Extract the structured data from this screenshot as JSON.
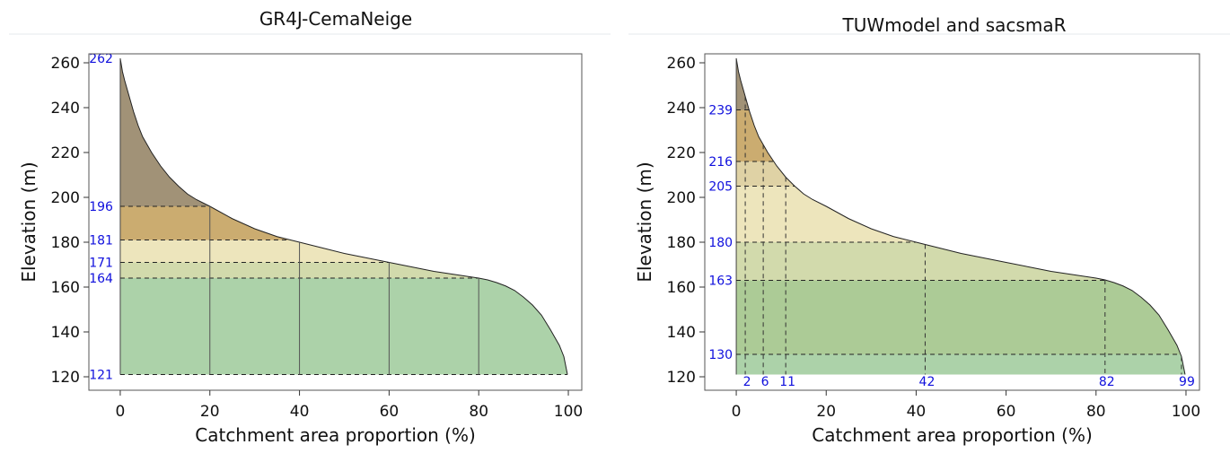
{
  "chart_data": [
    {
      "type": "area",
      "title": "GR4J-CemaNeige",
      "xlabel": "Catchment area proportion (%)",
      "ylabel": "Elevation (m)",
      "xlim": [
        -7,
        103
      ],
      "ylim": [
        114,
        264
      ],
      "x_ticks": [
        0,
        20,
        40,
        60,
        80,
        100
      ],
      "y_ticks": [
        120,
        140,
        160,
        180,
        200,
        220,
        240,
        260
      ],
      "grid": false,
      "hypsometric_curve": [
        [
          0,
          262
        ],
        [
          0.5,
          256
        ],
        [
          1,
          252
        ],
        [
          2,
          245
        ],
        [
          3,
          238
        ],
        [
          4,
          232
        ],
        [
          5,
          227
        ],
        [
          7,
          220
        ],
        [
          9,
          214
        ],
        [
          11,
          209
        ],
        [
          13,
          205
        ],
        [
          15,
          201.5
        ],
        [
          17,
          199
        ],
        [
          20,
          196
        ],
        [
          25,
          190.5
        ],
        [
          30,
          186
        ],
        [
          35,
          182.5
        ],
        [
          40,
          180
        ],
        [
          45,
          177.5
        ],
        [
          50,
          175
        ],
        [
          55,
          173
        ],
        [
          60,
          171
        ],
        [
          65,
          169
        ],
        [
          70,
          167
        ],
        [
          75,
          165.5
        ],
        [
          80,
          164
        ],
        [
          82,
          163.2
        ],
        [
          84,
          162
        ],
        [
          86,
          160.5
        ],
        [
          88,
          158.5
        ],
        [
          90,
          155.5
        ],
        [
          92,
          152
        ],
        [
          94,
          147.5
        ],
        [
          96,
          141
        ],
        [
          98,
          134
        ],
        [
          99,
          129
        ],
        [
          99.8,
          121
        ]
      ],
      "elevation_bands": [
        {
          "lower": 196,
          "upper": 262,
          "color": "#9c8c70"
        },
        {
          "lower": 181,
          "upper": 196,
          "color": "#c8a868"
        },
        {
          "lower": 171,
          "upper": 181,
          "color": "#ece4b8"
        },
        {
          "lower": 164,
          "upper": 171,
          "color": "#d0d8a8"
        },
        {
          "lower": 121,
          "upper": 164,
          "color": "#a8d0a4"
        }
      ],
      "band_labels": [
        "262",
        "196",
        "181",
        "171",
        "164",
        "121"
      ],
      "band_label_values": [
        262,
        196,
        181,
        171,
        164,
        121
      ],
      "vertical_lines": [
        20,
        40,
        60,
        80
      ],
      "bottom_labels": [],
      "bottom_label_values": []
    },
    {
      "type": "area",
      "title": "TUWmodel and sacsmaR",
      "xlabel": "Catchment area proportion (%)",
      "ylabel": "Elevation (m)",
      "xlim": [
        -7,
        103
      ],
      "ylim": [
        114,
        264
      ],
      "x_ticks": [
        0,
        20,
        40,
        60,
        80,
        100
      ],
      "y_ticks": [
        120,
        140,
        160,
        180,
        200,
        220,
        240,
        260
      ],
      "grid": false,
      "hypsometric_curve": [
        [
          0,
          262
        ],
        [
          0.5,
          256
        ],
        [
          1,
          252
        ],
        [
          2,
          245
        ],
        [
          3,
          238
        ],
        [
          4,
          232
        ],
        [
          5,
          227
        ],
        [
          7,
          220
        ],
        [
          9,
          214
        ],
        [
          11,
          209
        ],
        [
          13,
          205
        ],
        [
          15,
          201.5
        ],
        [
          17,
          199
        ],
        [
          20,
          196
        ],
        [
          25,
          190.5
        ],
        [
          30,
          186
        ],
        [
          35,
          182.5
        ],
        [
          40,
          180
        ],
        [
          45,
          177.5
        ],
        [
          50,
          175
        ],
        [
          55,
          173
        ],
        [
          60,
          171
        ],
        [
          65,
          169
        ],
        [
          70,
          167
        ],
        [
          75,
          165.5
        ],
        [
          80,
          164
        ],
        [
          82,
          163.2
        ],
        [
          84,
          162
        ],
        [
          86,
          160.5
        ],
        [
          88,
          158.5
        ],
        [
          90,
          155.5
        ],
        [
          92,
          152
        ],
        [
          94,
          147.5
        ],
        [
          96,
          141
        ],
        [
          98,
          134
        ],
        [
          99,
          129
        ],
        [
          99.8,
          121
        ]
      ],
      "elevation_bands": [
        {
          "lower": 239,
          "upper": 262,
          "color": "#9c8c70"
        },
        {
          "lower": 216,
          "upper": 239,
          "color": "#c8a868"
        },
        {
          "lower": 205,
          "upper": 216,
          "color": "#ddd0a0"
        },
        {
          "lower": 180,
          "upper": 205,
          "color": "#ece4b8"
        },
        {
          "lower": 163,
          "upper": 180,
          "color": "#d0d8a8"
        },
        {
          "lower": 130,
          "upper": 163,
          "color": "#a8c890"
        },
        {
          "lower": 121,
          "upper": 130,
          "color": "#a8d0a4"
        }
      ],
      "band_labels": [
        "239",
        "216",
        "205",
        "180",
        "163",
        "130"
      ],
      "band_label_values": [
        239,
        216,
        205,
        180,
        163,
        130
      ],
      "vertical_lines": [
        2,
        6,
        11,
        42,
        82,
        99
      ],
      "bottom_labels": [
        "2",
        "6",
        "11",
        "42",
        "82",
        "99"
      ],
      "bottom_label_values": [
        2,
        6,
        11,
        42,
        82,
        99
      ]
    }
  ]
}
